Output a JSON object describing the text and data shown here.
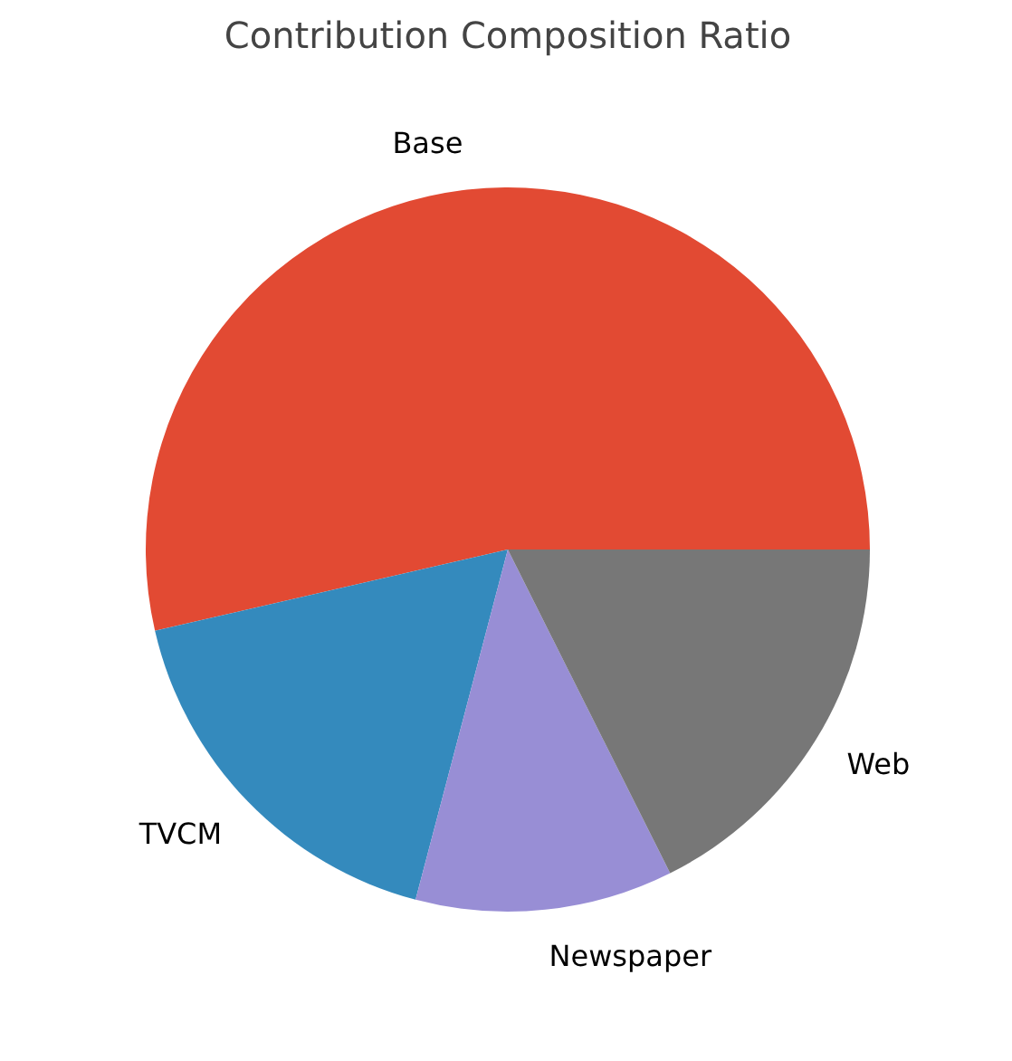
{
  "chart_data": {
    "type": "pie",
    "title": "Contribution Composition Ratio",
    "categories": [
      "Base",
      "TVCM",
      "Newspaper",
      "Web"
    ],
    "values": [
      53.6,
      17.3,
      11.5,
      17.6
    ],
    "colors": [
      "#e24a33",
      "#348abd",
      "#988ed5",
      "#777777"
    ]
  }
}
